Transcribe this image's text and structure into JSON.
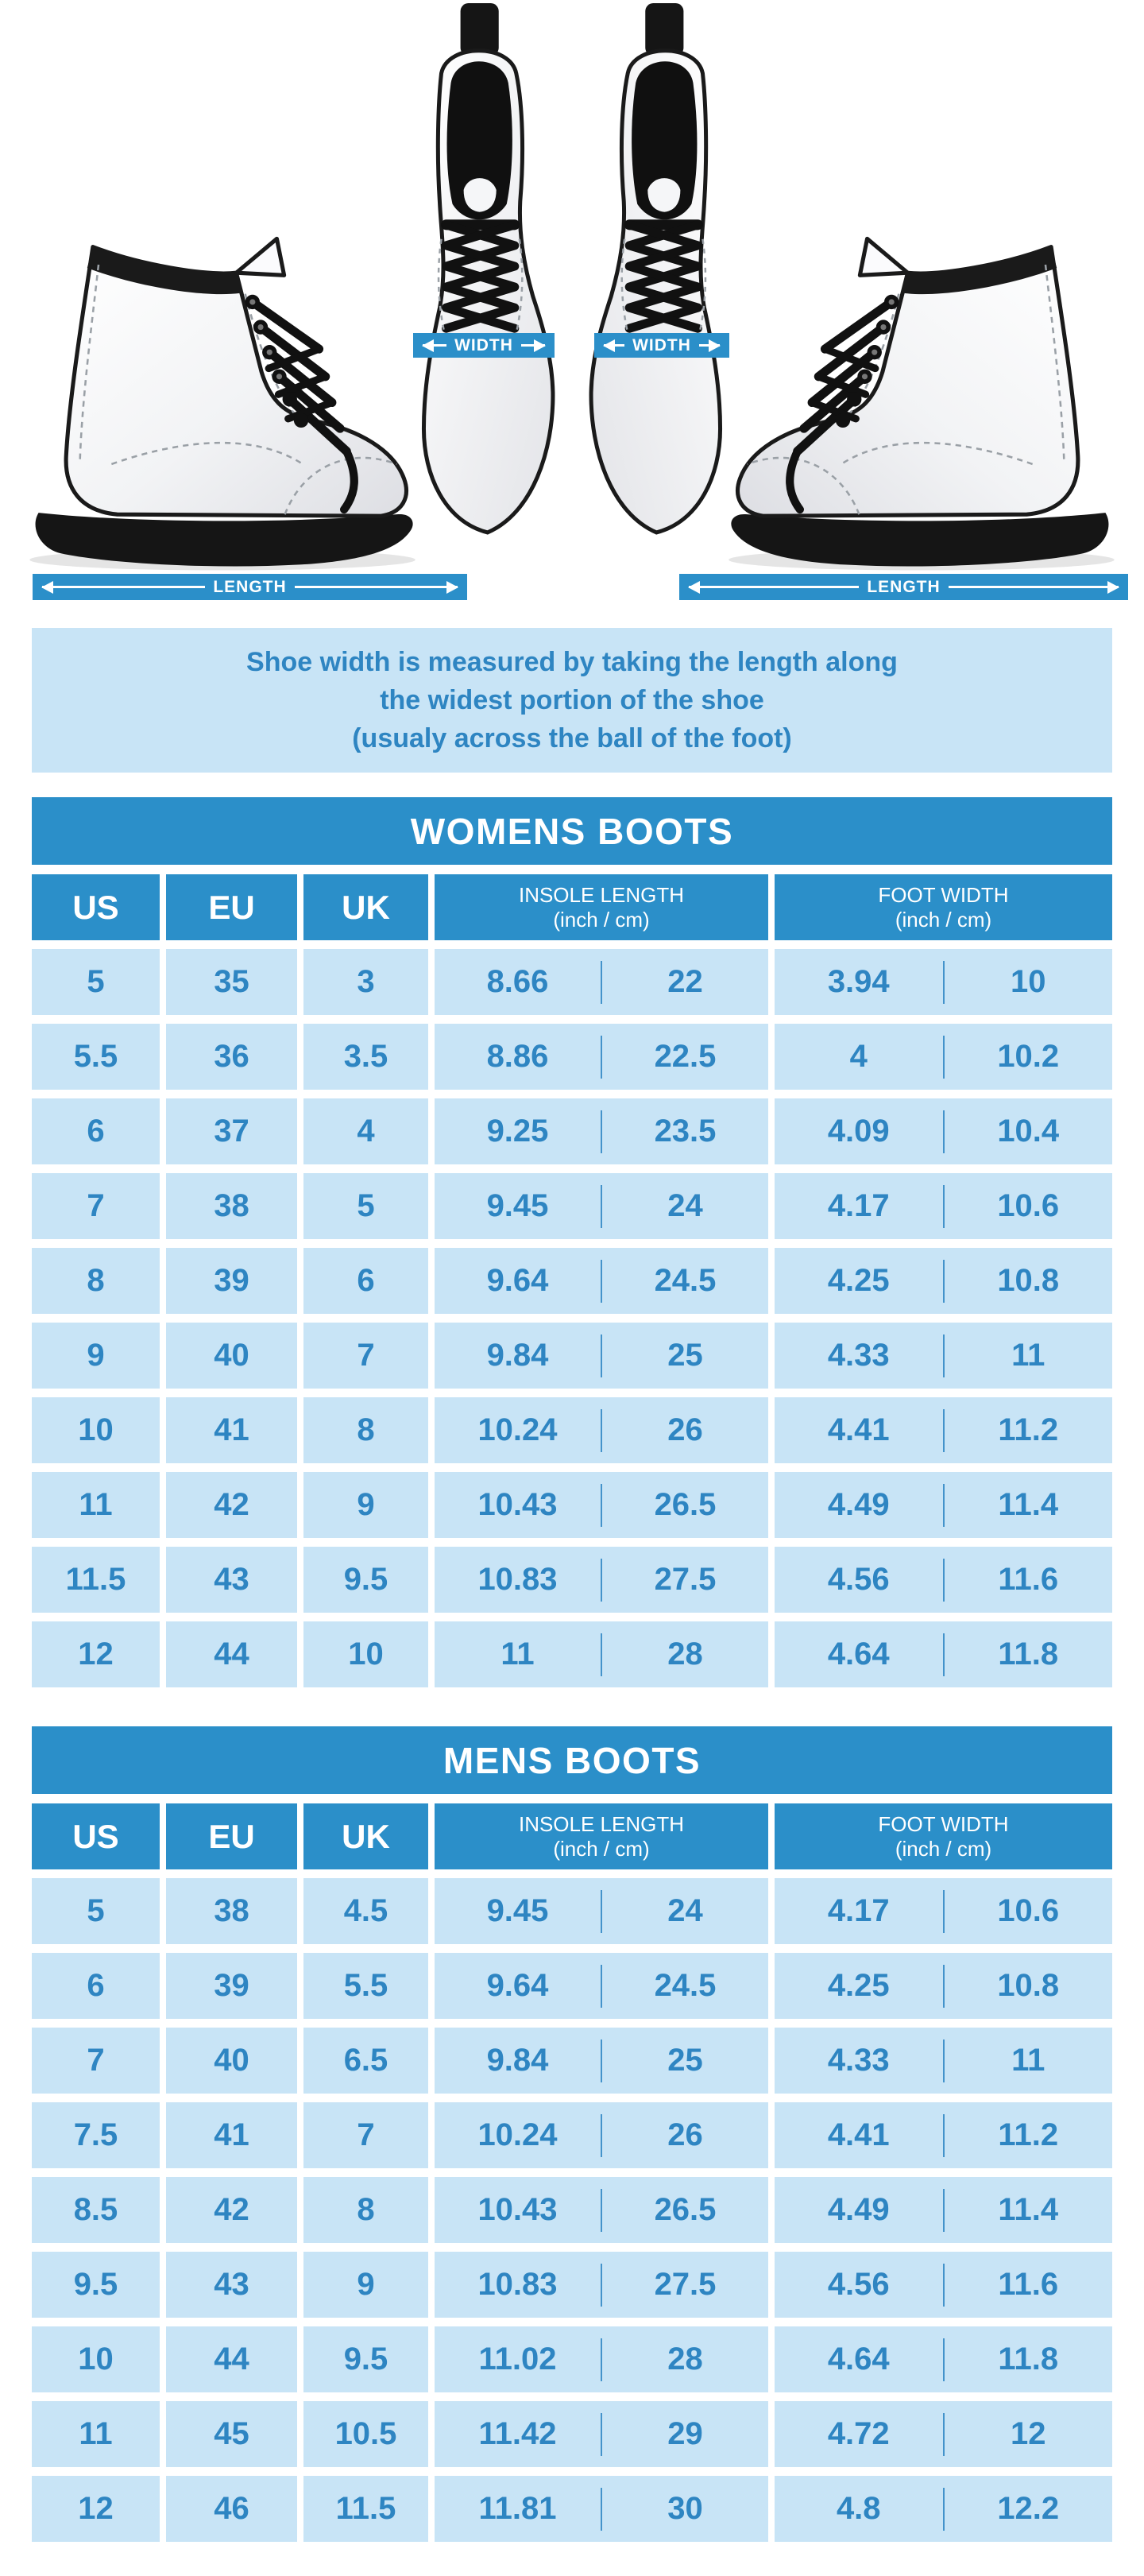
{
  "hero": {
    "width_label": "WIDTH",
    "length_label": "LENGTH"
  },
  "info_box": {
    "line1": "Shoe width is measured by taking the length along",
    "line2": "the widest portion of the shoe",
    "line3": "(usualy across the ball of the foot)"
  },
  "colors": {
    "accent_blue": "#2B8FC9",
    "light_cell_blue": "#C8E4F6",
    "table_text_blue": "#2E85C2"
  },
  "womens_table": {
    "title": "WOMENS BOOTS",
    "columns": {
      "us": "US",
      "eu": "EU",
      "uk": "UK",
      "insole": {
        "line1": "INSOLE LENGTH",
        "line2": "(inch / cm)"
      },
      "foot": {
        "line1": "FOOT WIDTH",
        "line2": "(inch / cm)"
      }
    },
    "rows": [
      [
        "5",
        "35",
        "3",
        "8.66",
        "22",
        "3.94",
        "10"
      ],
      [
        "5.5",
        "36",
        "3.5",
        "8.86",
        "22.5",
        "4",
        "10.2"
      ],
      [
        "6",
        "37",
        "4",
        "9.25",
        "23.5",
        "4.09",
        "10.4"
      ],
      [
        "7",
        "38",
        "5",
        "9.45",
        "24",
        "4.17",
        "10.6"
      ],
      [
        "8",
        "39",
        "6",
        "9.64",
        "24.5",
        "4.25",
        "10.8"
      ],
      [
        "9",
        "40",
        "7",
        "9.84",
        "25",
        "4.33",
        "11"
      ],
      [
        "10",
        "41",
        "8",
        "10.24",
        "26",
        "4.41",
        "11.2"
      ],
      [
        "11",
        "42",
        "9",
        "10.43",
        "26.5",
        "4.49",
        "11.4"
      ],
      [
        "11.5",
        "43",
        "9.5",
        "10.83",
        "27.5",
        "4.56",
        "11.6"
      ],
      [
        "12",
        "44",
        "10",
        "11",
        "28",
        "4.64",
        "11.8"
      ]
    ]
  },
  "mens_table": {
    "title": "MENS BOOTS",
    "columns": {
      "us": "US",
      "eu": "EU",
      "uk": "UK",
      "insole": {
        "line1": "INSOLE LENGTH",
        "line2": "(inch / cm)"
      },
      "foot": {
        "line1": "FOOT WIDTH",
        "line2": "(inch / cm)"
      }
    },
    "rows": [
      [
        "5",
        "38",
        "4.5",
        "9.45",
        "24",
        "4.17",
        "10.6"
      ],
      [
        "6",
        "39",
        "5.5",
        "9.64",
        "24.5",
        "4.25",
        "10.8"
      ],
      [
        "7",
        "40",
        "6.5",
        "9.84",
        "25",
        "4.33",
        "11"
      ],
      [
        "7.5",
        "41",
        "7",
        "10.24",
        "26",
        "4.41",
        "11.2"
      ],
      [
        "8.5",
        "42",
        "8",
        "10.43",
        "26.5",
        "4.49",
        "11.4"
      ],
      [
        "9.5",
        "43",
        "9",
        "10.83",
        "27.5",
        "4.56",
        "11.6"
      ],
      [
        "10",
        "44",
        "9.5",
        "11.02",
        "28",
        "4.64",
        "11.8"
      ],
      [
        "11",
        "45",
        "10.5",
        "11.42",
        "29",
        "4.72",
        "12"
      ],
      [
        "12",
        "46",
        "11.5",
        "11.81",
        "30",
        "4.8",
        "12.2"
      ]
    ]
  }
}
